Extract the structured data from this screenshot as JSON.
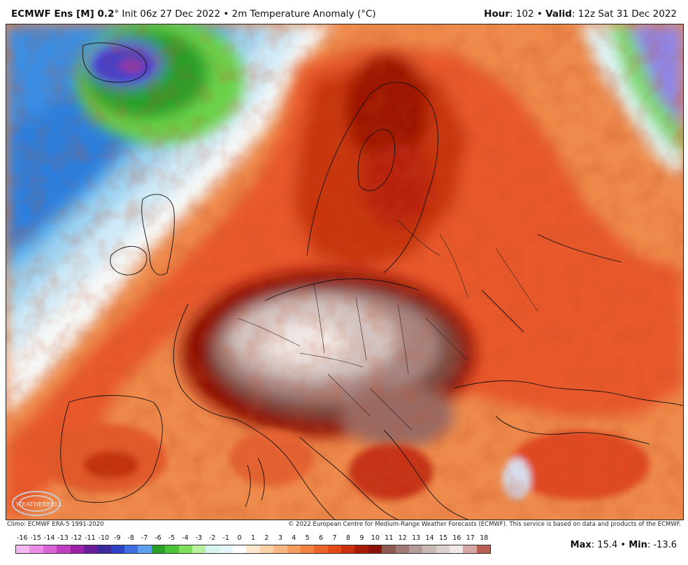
{
  "header": {
    "model": "ECMWF Ens [M] 0.2",
    "degree": "°",
    "init_text": " Init 06z 27 Dec 2022 • 2m Temperature Anomaly (°C)",
    "hour_label": "Hour",
    "hour_value": ": 102 •",
    "valid_label": "Valid",
    "valid_value": ": 12z Sat 31 Dec 2022"
  },
  "footer": {
    "climo": "Climo: ECMWF ERA-5 1991-2020",
    "copyright": "© 2022 European Centre for Medium-Range Weather Forecasts (ECMWF). This service is based on data and products of the ECMWF."
  },
  "stats": {
    "max_label": "Max",
    "max_value": ": 15.4 •",
    "min_label": "Min",
    "min_value": ": -13.6"
  },
  "logo": {
    "text": "WEATHERBELL"
  },
  "colorbar": {
    "labels": [
      "-16",
      "-15",
      "-14",
      "-13",
      "-12",
      "-11",
      "-10",
      "-9",
      "-8",
      "-7",
      "-6",
      "-5",
      "-4",
      "-3",
      "-2",
      "-1",
      "0",
      "1",
      "2",
      "3",
      "4",
      "5",
      "6",
      "7",
      "8",
      "9",
      "10",
      "11",
      "12",
      "13",
      "14",
      "15",
      "16",
      "17",
      "18"
    ],
    "colors": [
      "#f5b8f0",
      "#e98ee4",
      "#d964d6",
      "#c13ec2",
      "#9d22a8",
      "#6a1e9c",
      "#3c2a9e",
      "#3043c6",
      "#3f6ee0",
      "#5fa1ee",
      "#2aa02a",
      "#4cc23a",
      "#7ee05a",
      "#b9f0a0",
      "#d6f5f0",
      "#e6f7fb",
      "#ffffff",
      "#fde7cf",
      "#fbd1a8",
      "#f9b781",
      "#f69c5e",
      "#f2823f",
      "#ec6428",
      "#e34a16",
      "#cc2f0b",
      "#a81b06",
      "#8c1106",
      "#8f5a52",
      "#a07a74",
      "#b39c97",
      "#c9bab6",
      "#ddd1ce",
      "#efe8e6",
      "#d6a6a6",
      "#b85e52"
    ]
  },
  "map": {
    "regions": [
      {
        "name": "iceland",
        "color": "#5a4ad0"
      },
      {
        "name": "atlantic-cold",
        "color": "#2f9ae8"
      },
      {
        "name": "central-europe-extreme",
        "color": "#d8cbc8"
      },
      {
        "name": "scandinavia-warm",
        "color": "#c42a0c"
      },
      {
        "name": "mediterranean-warm",
        "color": "#f08a50"
      }
    ]
  }
}
